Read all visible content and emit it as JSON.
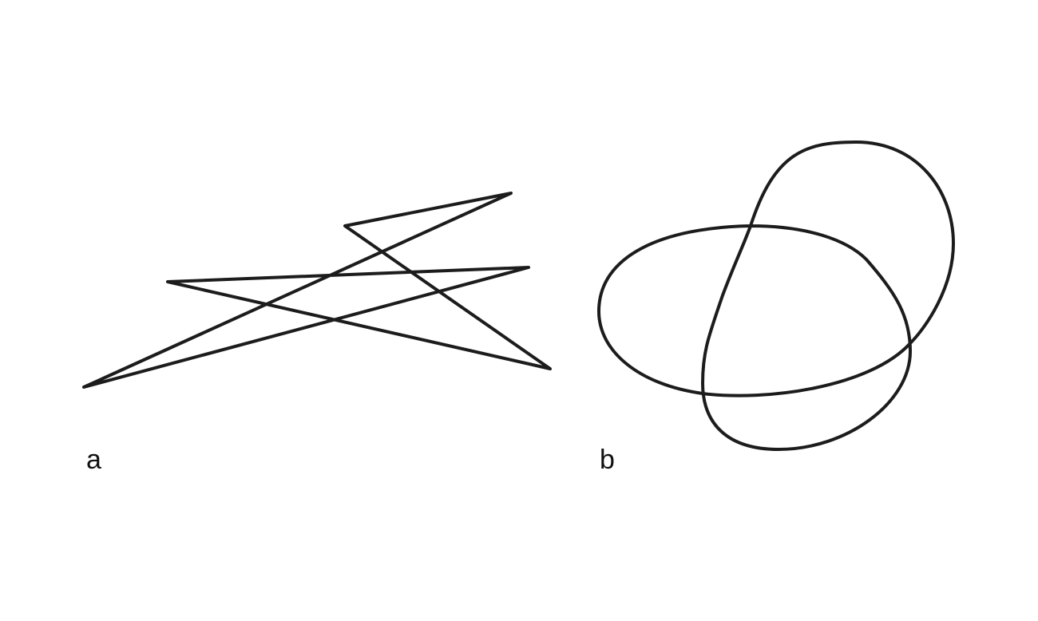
{
  "figure": {
    "panels": [
      {
        "id": "a",
        "label": "a",
        "shape": "polygonal-knot"
      },
      {
        "id": "b",
        "label": "b",
        "shape": "smooth-knot"
      }
    ],
    "colors": {
      "stroke": "#1c1c1c",
      "background": "#ffffff",
      "label": "#111111"
    }
  }
}
